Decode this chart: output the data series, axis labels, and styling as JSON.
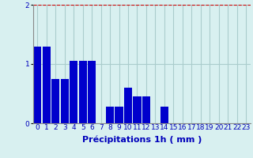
{
  "categories": [
    0,
    1,
    2,
    3,
    4,
    5,
    6,
    7,
    8,
    9,
    10,
    11,
    12,
    13,
    14,
    15,
    16,
    17,
    18,
    19,
    20,
    21,
    22,
    23
  ],
  "values": [
    1.3,
    1.3,
    0.75,
    0.75,
    1.05,
    1.05,
    1.05,
    0.0,
    0.28,
    0.28,
    0.6,
    0.45,
    0.45,
    0.0,
    0.28,
    0.0,
    0.0,
    0.0,
    0.0,
    0.0,
    0.0,
    0.0,
    0.0,
    0.0
  ],
  "bar_color": "#0000cc",
  "bg_color": "#d8f0f0",
  "grid_color": "#aacccc",
  "xlabel": "Précipitations 1h ( mm )",
  "ylim": [
    0,
    2
  ],
  "yticks": [
    0,
    1,
    2
  ],
  "xlabel_fontsize": 8,
  "tick_fontsize": 6.5
}
